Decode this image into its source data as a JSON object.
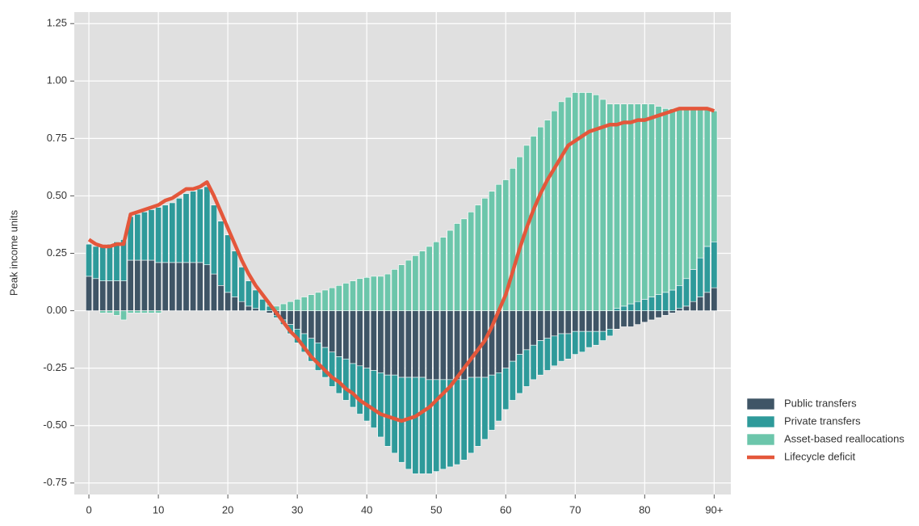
{
  "chart_data": {
    "type": "bar",
    "stacked": "diverging",
    "ylabel": "Peak income units",
    "x": [
      0,
      1,
      2,
      3,
      4,
      5,
      6,
      7,
      8,
      9,
      10,
      11,
      12,
      13,
      14,
      15,
      16,
      17,
      18,
      19,
      20,
      21,
      22,
      23,
      24,
      25,
      26,
      27,
      28,
      29,
      30,
      31,
      32,
      33,
      34,
      35,
      36,
      37,
      38,
      39,
      40,
      41,
      42,
      43,
      44,
      45,
      46,
      47,
      48,
      49,
      50,
      51,
      52,
      53,
      54,
      55,
      56,
      57,
      58,
      59,
      60,
      61,
      62,
      63,
      64,
      65,
      66,
      67,
      68,
      69,
      70,
      71,
      72,
      73,
      74,
      75,
      76,
      77,
      78,
      79,
      80,
      81,
      82,
      83,
      84,
      85,
      86,
      87,
      88,
      89,
      90
    ],
    "xlim": [
      -2.1,
      92.4
    ],
    "xticks": [
      0,
      10,
      20,
      30,
      40,
      50,
      60,
      70,
      80,
      {
        "value": 90,
        "label": "90+"
      }
    ],
    "ylim": [
      -0.8,
      1.3
    ],
    "yticks": [
      -0.75,
      {
        "value": -0.5,
        "label": "-0.50"
      },
      -0.25,
      {
        "value": 0,
        "label": "0.00"
      },
      0.25,
      {
        "value": 0.5,
        "label": "0.50"
      },
      0.75,
      {
        "value": 1,
        "label": "1.00"
      },
      1.25
    ],
    "grid": true,
    "legend": "right",
    "series": [
      {
        "name": "Public transfers",
        "type": "bar",
        "color": "#3f5566",
        "values": [
          0.15,
          0.14,
          0.13,
          0.13,
          0.13,
          0.13,
          0.22,
          0.22,
          0.22,
          0.22,
          0.21,
          0.21,
          0.21,
          0.21,
          0.21,
          0.21,
          0.21,
          0.2,
          0.16,
          0.11,
          0.08,
          0.06,
          0.04,
          0.02,
          0.01,
          0,
          -0.01,
          -0.02,
          -0.04,
          -0.06,
          -0.08,
          -0.1,
          -0.12,
          -0.14,
          -0.16,
          -0.18,
          -0.2,
          -0.21,
          -0.23,
          -0.24,
          -0.25,
          -0.26,
          -0.27,
          -0.28,
          -0.28,
          -0.29,
          -0.29,
          -0.29,
          -0.29,
          -0.3,
          -0.3,
          -0.3,
          -0.3,
          -0.3,
          -0.3,
          -0.29,
          -0.29,
          -0.29,
          -0.28,
          -0.27,
          -0.25,
          -0.22,
          -0.19,
          -0.17,
          -0.15,
          -0.13,
          -0.12,
          -0.11,
          -0.1,
          -0.1,
          -0.09,
          -0.09,
          -0.09,
          -0.09,
          -0.09,
          -0.08,
          -0.08,
          -0.07,
          -0.07,
          -0.06,
          -0.05,
          -0.04,
          -0.03,
          -0.02,
          -0.01,
          0.01,
          0.02,
          0.04,
          0.06,
          0.08,
          0.1
        ]
      },
      {
        "name": "Private transfers",
        "type": "bar",
        "color": "#2e9a9a",
        "values": [
          0.14,
          0.14,
          0.15,
          0.16,
          0.17,
          0.18,
          0.19,
          0.2,
          0.21,
          0.22,
          0.24,
          0.25,
          0.26,
          0.28,
          0.3,
          0.31,
          0.32,
          0.34,
          0.3,
          0.28,
          0.25,
          0.2,
          0.15,
          0.11,
          0.08,
          0.05,
          0.02,
          -0.01,
          -0.02,
          -0.04,
          -0.06,
          -0.08,
          -0.1,
          -0.12,
          -0.13,
          -0.15,
          -0.16,
          -0.18,
          -0.19,
          -0.21,
          -0.23,
          -0.25,
          -0.28,
          -0.31,
          -0.34,
          -0.37,
          -0.4,
          -0.42,
          -0.42,
          -0.41,
          -0.4,
          -0.39,
          -0.38,
          -0.37,
          -0.35,
          -0.33,
          -0.3,
          -0.27,
          -0.24,
          -0.21,
          -0.18,
          -0.17,
          -0.17,
          -0.16,
          -0.15,
          -0.15,
          -0.14,
          -0.13,
          -0.12,
          -0.11,
          -0.1,
          -0.09,
          -0.07,
          -0.06,
          -0.04,
          -0.03,
          0.01,
          0.02,
          0.03,
          0.04,
          0.05,
          0.06,
          0.07,
          0.08,
          0.09,
          0.1,
          0.12,
          0.14,
          0.17,
          0.2,
          0.2
        ]
      },
      {
        "name": "Asset-based reallocations",
        "type": "bar",
        "color": "#6cc6ab",
        "values": [
          0,
          0,
          -0.01,
          -0.01,
          -0.02,
          -0.04,
          -0.01,
          -0.01,
          -0.01,
          -0.01,
          -0.01,
          0,
          0,
          0,
          0,
          0,
          0,
          0,
          0,
          0,
          0,
          0,
          0,
          0,
          0,
          0,
          0.01,
          0.02,
          0.03,
          0.04,
          0.05,
          0.06,
          0.07,
          0.08,
          0.09,
          0.1,
          0.11,
          0.12,
          0.13,
          0.14,
          0.145,
          0.15,
          0.15,
          0.16,
          0.18,
          0.2,
          0.22,
          0.24,
          0.26,
          0.28,
          0.3,
          0.32,
          0.35,
          0.38,
          0.4,
          0.43,
          0.46,
          0.49,
          0.52,
          0.55,
          0.57,
          0.62,
          0.67,
          0.72,
          0.76,
          0.8,
          0.83,
          0.87,
          0.91,
          0.93,
          0.95,
          0.95,
          0.95,
          0.94,
          0.92,
          0.9,
          0.89,
          0.88,
          0.87,
          0.86,
          0.85,
          0.84,
          0.82,
          0.8,
          0.79,
          0.77,
          0.74,
          0.7,
          0.65,
          0.6,
          0.57
        ]
      },
      {
        "name": "Lifecycle deficit",
        "type": "line",
        "color": "#e4573b",
        "values": [
          0.31,
          0.29,
          0.28,
          0.28,
          0.29,
          0.29,
          0.42,
          0.43,
          0.44,
          0.45,
          0.46,
          0.48,
          0.49,
          0.51,
          0.53,
          0.53,
          0.54,
          0.56,
          0.5,
          0.43,
          0.36,
          0.29,
          0.22,
          0.16,
          0.11,
          0.07,
          0.03,
          -0.01,
          -0.05,
          -0.09,
          -0.12,
          -0.16,
          -0.2,
          -0.23,
          -0.26,
          -0.29,
          -0.31,
          -0.34,
          -0.36,
          -0.39,
          -0.41,
          -0.43,
          -0.45,
          -0.46,
          -0.47,
          -0.48,
          -0.47,
          -0.46,
          -0.44,
          -0.42,
          -0.39,
          -0.36,
          -0.33,
          -0.29,
          -0.25,
          -0.21,
          -0.17,
          -0.13,
          -0.07,
          0,
          0.07,
          0.17,
          0.27,
          0.36,
          0.44,
          0.51,
          0.57,
          0.62,
          0.67,
          0.72,
          0.74,
          0.76,
          0.78,
          0.79,
          0.8,
          0.81,
          0.81,
          0.82,
          0.82,
          0.83,
          0.83,
          0.84,
          0.85,
          0.86,
          0.87,
          0.88,
          0.88,
          0.88,
          0.88,
          0.88,
          0.87
        ]
      }
    ]
  }
}
